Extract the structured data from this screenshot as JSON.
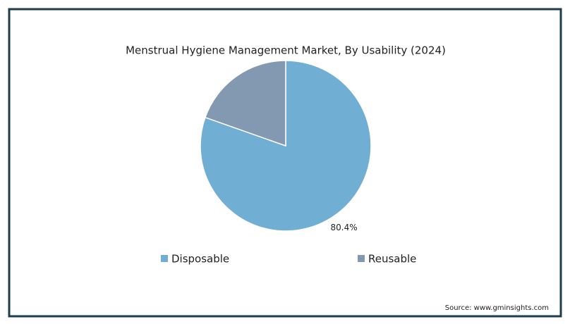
{
  "chart_data": {
    "type": "pie",
    "title": "Menstrual Hygiene Management Market, By Usability (2024)",
    "categories": [
      "Disposable",
      "Reusable"
    ],
    "values": [
      80.4,
      19.6
    ],
    "value_labels": [
      "80.4%",
      null
    ],
    "colors": [
      "#70afd3",
      "#8399b1"
    ],
    "legend": "bottom",
    "source": "Source: www.gminsights.com"
  }
}
